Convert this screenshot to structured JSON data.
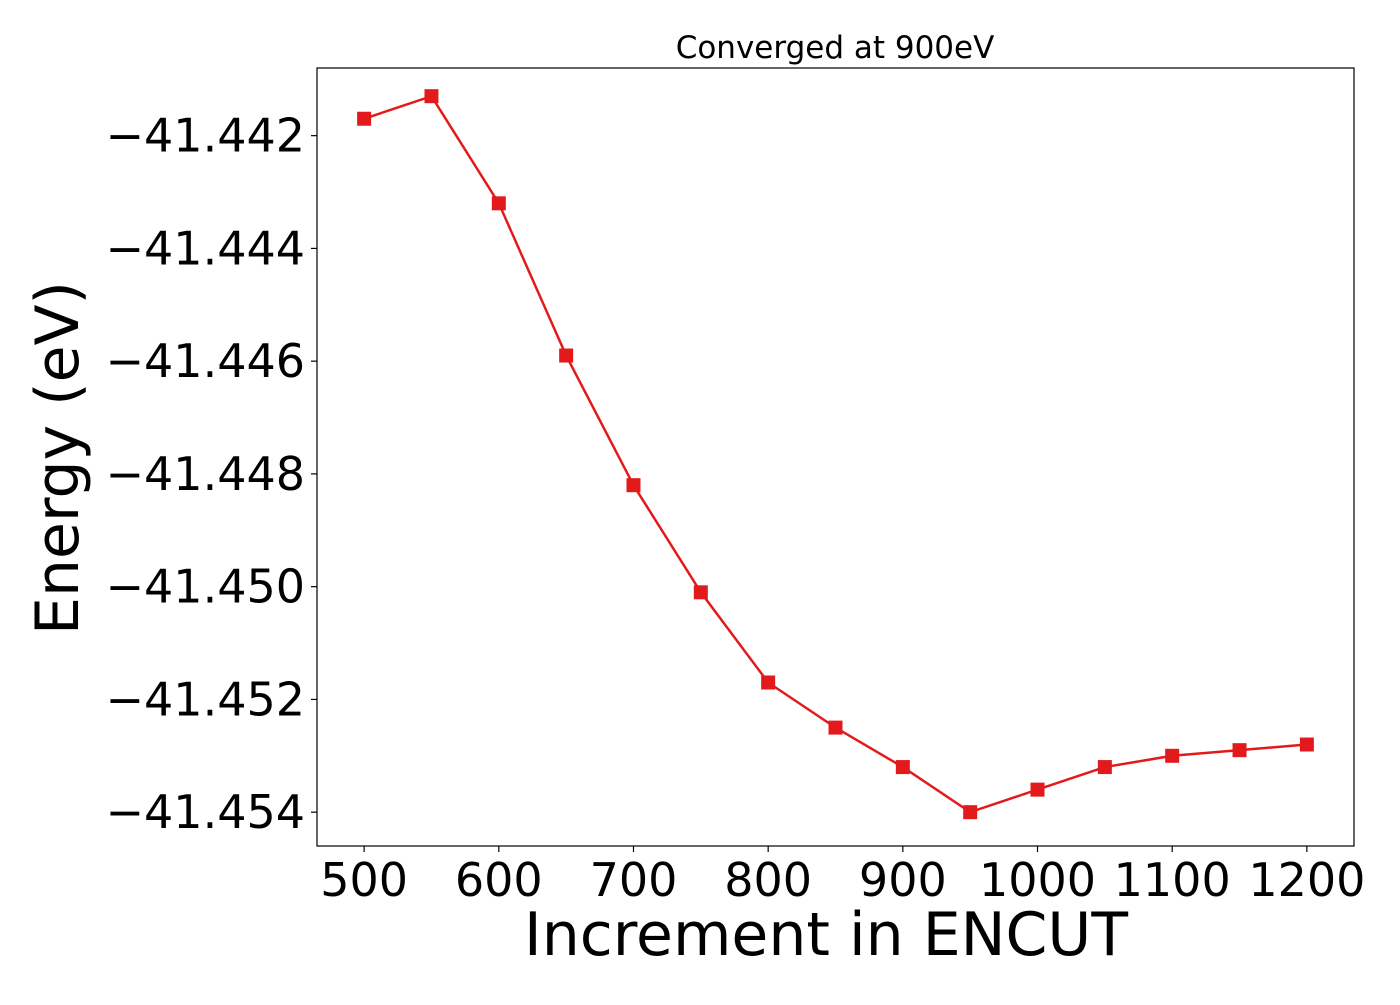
{
  "chart_data": {
    "type": "line",
    "title": "Converged at 900eV",
    "xlabel": "Increment in ENCUT",
    "ylabel": "Energy (eV)",
    "x": [
      500,
      550,
      600,
      650,
      700,
      750,
      800,
      850,
      900,
      950,
      1000,
      1050,
      1100,
      1150,
      1200
    ],
    "series": [
      {
        "values": [
          -41.4417,
          -41.4413,
          -41.4432,
          -41.4459,
          -41.4482,
          -41.4501,
          -41.4517,
          -41.4525,
          -41.4532,
          -41.454,
          -41.4536,
          -41.4532,
          -41.453,
          -41.4529,
          -41.4528
        ],
        "color": "#e31a1c",
        "marker": "square"
      }
    ],
    "xticks": [
      500,
      600,
      700,
      800,
      900,
      1000,
      1100,
      1200
    ],
    "xtick_labels": [
      "500",
      "600",
      "700",
      "800",
      "900",
      "1000",
      "1100",
      "1200"
    ],
    "yticks": [
      -41.442,
      -41.444,
      -41.446,
      -41.448,
      -41.45,
      -41.452,
      -41.454
    ],
    "ytick_labels": [
      "−41.442",
      "−41.444",
      "−41.446",
      "−41.448",
      "−41.450",
      "−41.452",
      "−41.454"
    ],
    "xlim": [
      465,
      1235
    ],
    "ylim": [
      -41.4546,
      -41.4408
    ],
    "grid": false,
    "legend": "none"
  }
}
